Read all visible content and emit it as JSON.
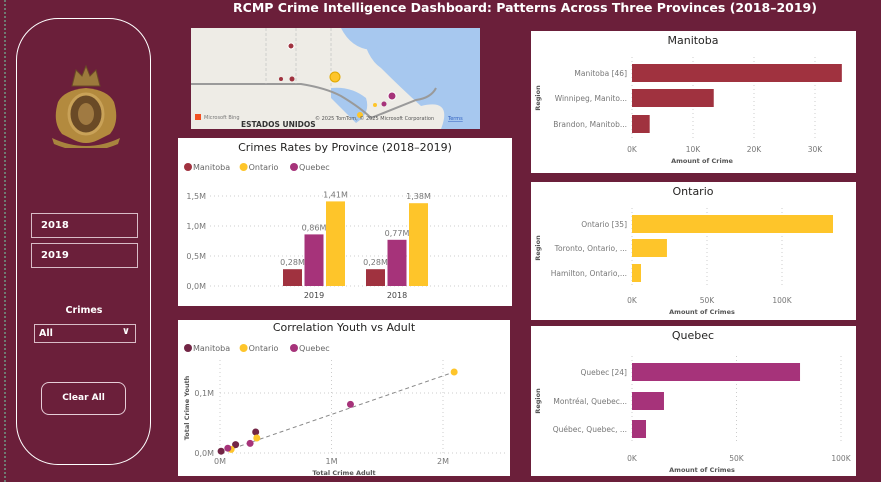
{
  "title": "RCMP Crime Intelligence Dashboard: Patterns Across Three Provinces (2018–2019)",
  "sidebar": {
    "years": [
      "2018",
      "2019"
    ],
    "crimes_label": "Crimes",
    "crimes_value": "All",
    "clear_label": "Clear All"
  },
  "colors": {
    "background": "#6b1f3a",
    "manitoba": "#a0323f",
    "ontario": "#fec52a",
    "quebec": "#a6337a",
    "manitoba_scatter": "#722545"
  },
  "map": {
    "attribution": "© 2025 TomTom, © 2025 Microsoft Corporation",
    "terms": "Terms",
    "logo": "Microsoft Bing",
    "label": "ESTADOS UNIDOS"
  },
  "chart_data": [
    {
      "type": "bar",
      "title": "Crimes Rates by Province (2018–2019)",
      "categories": [
        "2019",
        "2018"
      ],
      "series": [
        {
          "name": "Manitoba",
          "values": [
            0.28,
            0.28
          ],
          "labels": [
            "0,28M",
            "0,28M"
          ]
        },
        {
          "name": "Quebec",
          "values": [
            0.86,
            0.77
          ],
          "labels": [
            "0,86M",
            "0,77M"
          ]
        },
        {
          "name": "Ontario",
          "values": [
            1.41,
            1.38
          ],
          "labels": [
            "1,41M",
            "1,38M"
          ]
        }
      ],
      "legend": [
        "Manitoba",
        "Ontario",
        "Quebec"
      ],
      "unit": "M",
      "ylim": [
        0,
        1.5
      ],
      "yticks": [
        "0,0M",
        "0,5M",
        "1,0M",
        "1,5M"
      ],
      "legend_position": "top-left",
      "grid": true
    },
    {
      "type": "scatter",
      "title": "Correlation Youth vs Adult",
      "xlabel": "Total Crime Adult",
      "ylabel": "Total Crime Youth",
      "legend": [
        "Manitoba",
        "Ontario",
        "Quebec"
      ],
      "xticks": [
        "0M",
        "1M",
        "2M"
      ],
      "yticks": [
        "0,0M",
        "0,1M"
      ],
      "trendline": true,
      "series": [
        {
          "name": "Manitoba",
          "points": [
            [
              0.01,
              0.003
            ],
            [
              0.14,
              0.014
            ],
            [
              0.32,
              0.035
            ]
          ]
        },
        {
          "name": "Ontario",
          "points": [
            [
              0.1,
              0.006
            ],
            [
              0.33,
              0.025
            ],
            [
              2.1,
              0.135
            ]
          ]
        },
        {
          "name": "Quebec",
          "points": [
            [
              0.07,
              0.008
            ],
            [
              0.27,
              0.016
            ],
            [
              1.17,
              0.081
            ]
          ]
        }
      ]
    },
    {
      "type": "bar",
      "orientation": "horizontal",
      "title": "Manitoba",
      "ylabel": "Region",
      "xlabel": "Amount of Crime",
      "categories": [
        "Manitoba [46]",
        "Winnipeg, Manito...",
        "Brandon, Manitob..."
      ],
      "values": [
        34400,
        13400,
        2900
      ],
      "xticks": [
        "0K",
        "10K",
        "20K",
        "30K"
      ],
      "tickstep": 10000
    },
    {
      "type": "bar",
      "orientation": "horizontal",
      "title": "Ontario",
      "ylabel": "Region",
      "xlabel": "Amount of Crimes",
      "categories": [
        "Ontario [35]",
        "Toronto, Ontario, ...",
        "Hamilton, Ontario,..."
      ],
      "values": [
        134000,
        23300,
        6000
      ],
      "xticks": [
        "0K",
        "50K",
        "100K"
      ],
      "tickstep": 50000
    },
    {
      "type": "bar",
      "orientation": "horizontal",
      "title": "Quebec",
      "ylabel": "Region",
      "xlabel": "Amount of Crimes",
      "categories": [
        "Quebec [24]",
        "Montréal, Quebec...",
        "Québec, Quebec, ..."
      ],
      "values": [
        80400,
        15300,
        6700
      ],
      "xticks": [
        "0K",
        "50K",
        "100K"
      ],
      "tickstep": 50000
    }
  ]
}
